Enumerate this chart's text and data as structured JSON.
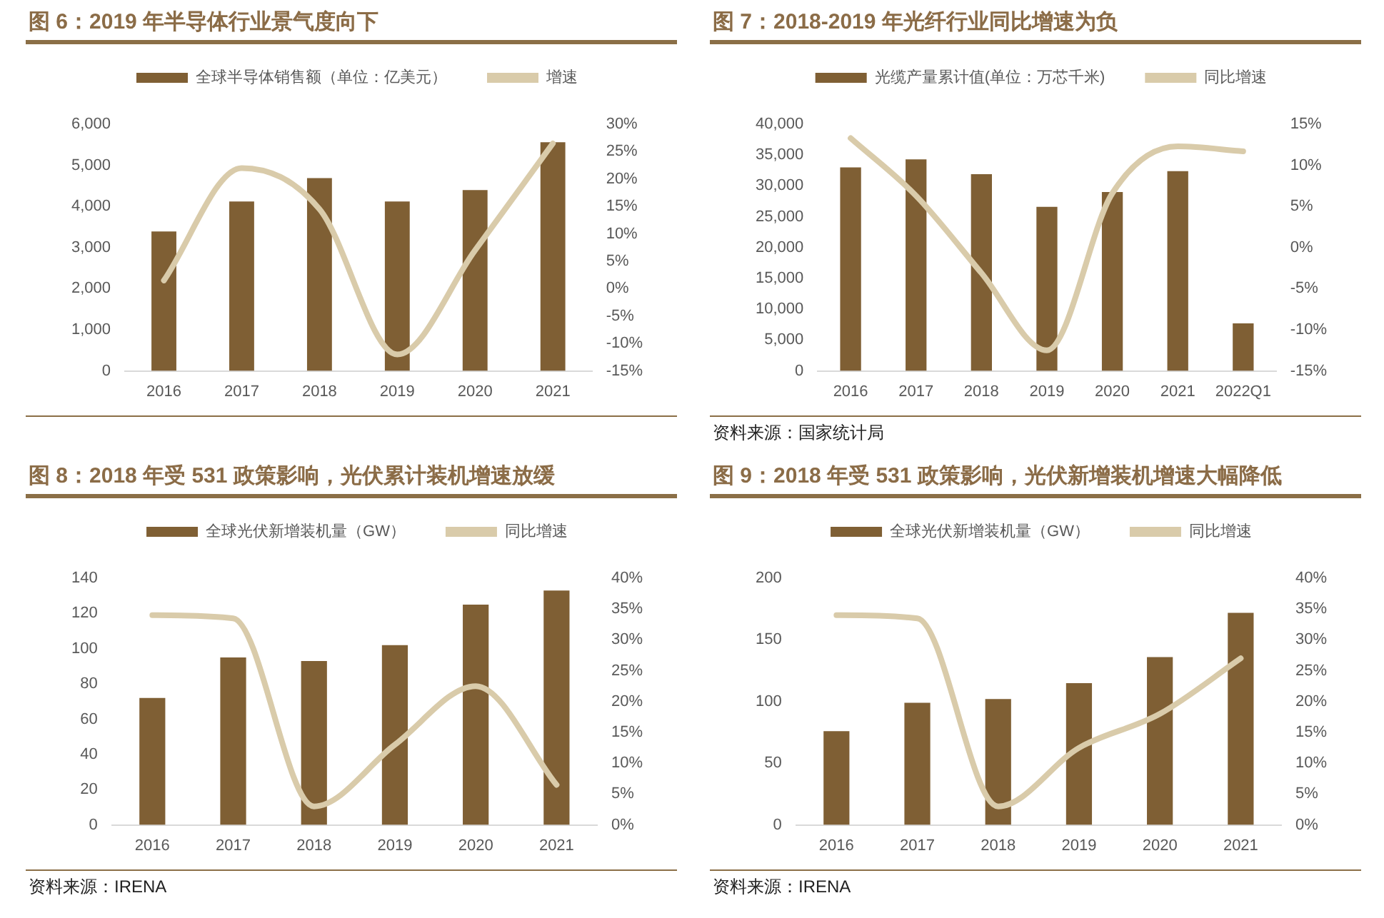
{
  "chart_data": [
    {
      "type": "bar",
      "title": "图 6：2019 年半导体行业景气度向下",
      "categories": [
        "2016",
        "2017",
        "2018",
        "2019",
        "2020",
        "2021"
      ],
      "series": [
        {
          "name": "全球半导体销售额（单位：亿美元）",
          "color": "#7f5f34",
          "values": [
            3390,
            4120,
            4690,
            4120,
            4400,
            5560
          ]
        },
        {
          "name": "增速",
          "type": "line",
          "axis": "y2",
          "color": "#d9cbaa",
          "values": [
            1.5,
            22,
            14.5,
            -12,
            7,
            26.5
          ]
        }
      ],
      "ylim": [
        0,
        6000
      ],
      "yticks": [
        0,
        {
          "value": 1000,
          "label": "1,000"
        },
        {
          "value": 2000,
          "label": "2,000"
        },
        {
          "value": 3000,
          "label": "3,000"
        },
        {
          "value": 4000,
          "label": "4,000"
        },
        {
          "value": 5000,
          "label": "5,000"
        },
        {
          "value": 6000,
          "label": "6,000"
        }
      ],
      "y2lim": [
        -15,
        30
      ],
      "y2ticks": [
        {
          "value": -15,
          "label": "-15%"
        },
        {
          "value": -10,
          "label": "-10%"
        },
        {
          "value": -5,
          "label": "-5%"
        },
        {
          "value": 0,
          "label": "0%"
        },
        {
          "value": 5,
          "label": "5%"
        },
        {
          "value": 10,
          "label": "10%"
        },
        {
          "value": 15,
          "label": "15%"
        },
        {
          "value": 20,
          "label": "20%"
        },
        {
          "value": 25,
          "label": "25%"
        },
        {
          "value": 30,
          "label": "30%"
        }
      ],
      "legend": "top",
      "marker": "none"
    },
    {
      "type": "bar",
      "title": "图 7：2018-2019 年光纤行业同比增速为负",
      "categories": [
        "2016",
        "2017",
        "2018",
        "2019",
        "2020",
        "2021",
        "2022Q1"
      ],
      "series": [
        {
          "name": "光缆产量累计值(单位：万芯千米)",
          "color": "#7f5f34",
          "values": [
            33000,
            34300,
            31900,
            26600,
            29000,
            32400,
            7700
          ]
        },
        {
          "name": "同比增速",
          "type": "line",
          "axis": "y2",
          "color": "#d9cbaa",
          "values": [
            13.3,
            6.3,
            -3.1,
            -12.5,
            6.6,
            12.3,
            11.7
          ]
        }
      ],
      "ylim": [
        0,
        40000
      ],
      "yticks": [
        0,
        {
          "value": 5000,
          "label": "5,000"
        },
        {
          "value": 10000,
          "label": "10,000"
        },
        {
          "value": 15000,
          "label": "15,000"
        },
        {
          "value": 20000,
          "label": "20,000"
        },
        {
          "value": 25000,
          "label": "25,000"
        },
        {
          "value": 30000,
          "label": "30,000"
        },
        {
          "value": 35000,
          "label": "35,000"
        },
        {
          "value": 40000,
          "label": "40,000"
        }
      ],
      "y2lim": [
        -15,
        15
      ],
      "y2ticks": [
        {
          "value": -15,
          "label": "-15%"
        },
        {
          "value": -10,
          "label": "-10%"
        },
        {
          "value": -5,
          "label": "-5%"
        },
        {
          "value": 0,
          "label": "0%"
        },
        {
          "value": 5,
          "label": "5%"
        },
        {
          "value": 10,
          "label": "10%"
        },
        {
          "value": 15,
          "label": "15%"
        }
      ],
      "legend": "top",
      "marker": "none",
      "annotations": [
        "资料来源：国家统计局"
      ]
    },
    {
      "type": "bar",
      "title": "图 8：2018 年受 531 政策影响，光伏累计装机增速放缓",
      "categories": [
        "2016",
        "2017",
        "2018",
        "2019",
        "2020",
        "2021"
      ],
      "series": [
        {
          "name": "全球光伏新增装机量（GW）",
          "color": "#7f5f34",
          "values": [
            72,
            95,
            93,
            102,
            125,
            133
          ]
        },
        {
          "name": "同比增速",
          "type": "line",
          "axis": "y2",
          "color": "#d9cbaa",
          "values": [
            34,
            33.5,
            3,
            13,
            22.5,
            6.5
          ]
        }
      ],
      "ylim": [
        0,
        140
      ],
      "yticks": [
        0,
        20,
        40,
        60,
        80,
        100,
        120,
        140
      ],
      "y2lim": [
        0,
        40
      ],
      "y2ticks": [
        {
          "value": 0,
          "label": "0%"
        },
        {
          "value": 5,
          "label": "5%"
        },
        {
          "value": 10,
          "label": "10%"
        },
        {
          "value": 15,
          "label": "15%"
        },
        {
          "value": 20,
          "label": "20%"
        },
        {
          "value": 25,
          "label": "25%"
        },
        {
          "value": 30,
          "label": "30%"
        },
        {
          "value": 35,
          "label": "35%"
        },
        {
          "value": 40,
          "label": "40%"
        }
      ],
      "legend": "top",
      "marker": "none",
      "annotations": [
        "资料来源：IRENA"
      ]
    },
    {
      "type": "bar",
      "title": "图 9：2018 年受 531 政策影响，光伏新增装机增速大幅降低",
      "categories": [
        "2016",
        "2017",
        "2018",
        "2019",
        "2020",
        "2021"
      ],
      "series": [
        {
          "name": "全球光伏新增装机量（GW）",
          "color": "#7f5f34",
          "values": [
            76,
            99,
            102,
            115,
            136,
            172
          ]
        },
        {
          "name": "同比增速",
          "type": "line",
          "axis": "y2",
          "color": "#d9cbaa",
          "values": [
            34,
            33.5,
            3,
            12.5,
            18,
            27
          ]
        }
      ],
      "ylim": [
        0,
        200
      ],
      "yticks": [
        0,
        50,
        100,
        150,
        200
      ],
      "y2lim": [
        0,
        40
      ],
      "y2ticks": [
        {
          "value": 0,
          "label": "0%"
        },
        {
          "value": 5,
          "label": "5%"
        },
        {
          "value": 10,
          "label": "10%"
        },
        {
          "value": 15,
          "label": "15%"
        },
        {
          "value": 20,
          "label": "20%"
        },
        {
          "value": 25,
          "label": "25%"
        },
        {
          "value": 30,
          "label": "30%"
        },
        {
          "value": 35,
          "label": "35%"
        },
        {
          "value": 40,
          "label": "40%"
        }
      ],
      "legend": "top",
      "marker": "none",
      "annotations": [
        "资料来源：IRENA"
      ]
    }
  ]
}
